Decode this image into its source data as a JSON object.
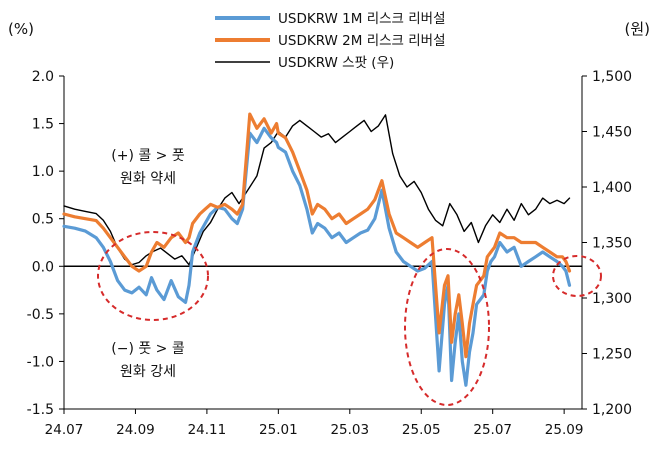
{
  "chart_data": {
    "type": "line",
    "left_unit": "(%)",
    "right_unit": "(원)",
    "x_ticks": [
      "24.07",
      "24.09",
      "24.11",
      "25.01",
      "25.03",
      "25.05",
      "25.07",
      "25.09"
    ],
    "y_left": {
      "min": -1.5,
      "max": 2.0,
      "step": 0.5,
      "ticks": [
        "2.0",
        "1.5",
        "1.0",
        "0.5",
        "0.0",
        "-0.5",
        "-1.0",
        "-1.5"
      ]
    },
    "y_right": {
      "min": 1200,
      "max": 1500,
      "step": 50,
      "ticks": [
        "1,500",
        "1,450",
        "1,400",
        "1,350",
        "1,300",
        "1,250",
        "1,200"
      ]
    },
    "legend": [
      {
        "label": "USDKRW 1M 리스크 리버설",
        "color": "#5b9bd5"
      },
      {
        "label": "USDKRW 2M 리스크 리버설",
        "color": "#ed7d31"
      },
      {
        "label": "USDKRW 스팟 (우)",
        "color": "#000000"
      }
    ],
    "annotations": [
      {
        "line1": "(+) 콜 > 풋",
        "line2": "원화 약세"
      },
      {
        "line1": "(−) 풋 > 콜",
        "line2": "원화 강세"
      }
    ],
    "x_range": [
      0,
      14.5
    ],
    "series": [
      {
        "name": "USDKRW 1M 리스크 리버설",
        "axis": "left",
        "color": "#5b9bd5",
        "x": [
          0,
          0.3,
          0.6,
          0.9,
          1.1,
          1.3,
          1.5,
          1.7,
          1.9,
          2.1,
          2.3,
          2.45,
          2.6,
          2.8,
          3.0,
          3.2,
          3.4,
          3.5,
          3.6,
          3.8,
          3.95,
          4.1,
          4.3,
          4.5,
          4.7,
          4.85,
          5.0,
          5.2,
          5.4,
          5.6,
          5.8,
          5.95,
          6.0,
          6.2,
          6.4,
          6.6,
          6.8,
          6.95,
          7.1,
          7.3,
          7.5,
          7.7,
          7.9,
          8.1,
          8.3,
          8.5,
          8.7,
          8.9,
          9.1,
          9.3,
          9.5,
          9.7,
          9.9,
          10.1,
          10.3,
          10.5,
          10.65,
          10.75,
          10.85,
          10.95,
          11.05,
          11.15,
          11.25,
          11.35,
          11.45,
          11.55,
          11.65,
          11.75,
          11.85,
          11.95,
          12.05,
          12.2,
          12.4,
          12.6,
          12.8,
          13.0,
          13.2,
          13.4,
          13.6,
          13.8,
          13.95,
          14.05,
          14.15
        ],
        "y": [
          0.42,
          0.4,
          0.37,
          0.3,
          0.2,
          0.05,
          -0.15,
          -0.25,
          -0.28,
          -0.22,
          -0.3,
          -0.12,
          -0.25,
          -0.35,
          -0.15,
          -0.32,
          -0.38,
          -0.2,
          0.15,
          0.35,
          0.45,
          0.55,
          0.62,
          0.6,
          0.5,
          0.45,
          0.6,
          1.4,
          1.3,
          1.45,
          1.35,
          1.3,
          1.25,
          1.2,
          1.0,
          0.85,
          0.6,
          0.35,
          0.45,
          0.4,
          0.3,
          0.35,
          0.25,
          0.3,
          0.35,
          0.38,
          0.5,
          0.8,
          0.4,
          0.15,
          0.05,
          0.0,
          -0.05,
          -0.02,
          0.05,
          -1.1,
          -0.4,
          -0.2,
          -1.2,
          -0.8,
          -0.5,
          -1.0,
          -1.25,
          -0.9,
          -0.7,
          -0.4,
          -0.35,
          -0.3,
          -0.05,
          0.05,
          0.1,
          0.25,
          0.15,
          0.2,
          0.0,
          0.05,
          0.1,
          0.15,
          0.1,
          0.05,
          0.0,
          -0.05,
          -0.2
        ]
      },
      {
        "name": "USDKRW 2M 리스크 리버설",
        "axis": "left",
        "color": "#ed7d31",
        "x": [
          0,
          0.3,
          0.6,
          0.9,
          1.1,
          1.3,
          1.5,
          1.7,
          1.9,
          2.1,
          2.3,
          2.45,
          2.6,
          2.8,
          3.0,
          3.2,
          3.4,
          3.5,
          3.6,
          3.8,
          3.95,
          4.1,
          4.3,
          4.5,
          4.7,
          4.85,
          5.0,
          5.2,
          5.4,
          5.6,
          5.8,
          5.95,
          6.0,
          6.2,
          6.4,
          6.6,
          6.8,
          6.95,
          7.1,
          7.3,
          7.5,
          7.7,
          7.9,
          8.1,
          8.3,
          8.5,
          8.7,
          8.9,
          9.1,
          9.3,
          9.5,
          9.7,
          9.9,
          10.1,
          10.3,
          10.5,
          10.65,
          10.75,
          10.85,
          10.95,
          11.05,
          11.15,
          11.25,
          11.35,
          11.45,
          11.55,
          11.65,
          11.75,
          11.85,
          11.95,
          12.05,
          12.2,
          12.4,
          12.6,
          12.8,
          13.0,
          13.2,
          13.4,
          13.6,
          13.8,
          13.95,
          14.05,
          14.15
        ],
        "y": [
          0.55,
          0.52,
          0.5,
          0.48,
          0.4,
          0.3,
          0.2,
          0.1,
          0.0,
          -0.05,
          0.0,
          0.15,
          0.25,
          0.2,
          0.3,
          0.35,
          0.25,
          0.3,
          0.45,
          0.55,
          0.6,
          0.65,
          0.62,
          0.65,
          0.6,
          0.55,
          0.65,
          1.6,
          1.45,
          1.55,
          1.4,
          1.5,
          1.4,
          1.35,
          1.2,
          1.0,
          0.8,
          0.55,
          0.65,
          0.6,
          0.5,
          0.55,
          0.45,
          0.5,
          0.55,
          0.6,
          0.7,
          0.9,
          0.55,
          0.35,
          0.3,
          0.25,
          0.2,
          0.25,
          0.3,
          -0.7,
          -0.2,
          -0.1,
          -0.8,
          -0.5,
          -0.3,
          -0.6,
          -0.95,
          -0.6,
          -0.4,
          -0.2,
          -0.15,
          -0.1,
          0.1,
          0.15,
          0.2,
          0.35,
          0.3,
          0.3,
          0.25,
          0.25,
          0.25,
          0.2,
          0.15,
          0.1,
          0.1,
          0.05,
          -0.05
        ]
      },
      {
        "name": "USDKRW 스팟 (우)",
        "axis": "right",
        "color": "#000000",
        "x": [
          0,
          0.3,
          0.6,
          0.9,
          1.1,
          1.3,
          1.5,
          1.7,
          1.9,
          2.1,
          2.3,
          2.5,
          2.7,
          2.9,
          3.1,
          3.3,
          3.5,
          3.7,
          3.9,
          4.1,
          4.3,
          4.5,
          4.7,
          4.9,
          5.0,
          5.2,
          5.4,
          5.6,
          5.8,
          6.0,
          6.2,
          6.4,
          6.6,
          6.8,
          7.0,
          7.2,
          7.4,
          7.6,
          7.8,
          8.0,
          8.2,
          8.4,
          8.6,
          8.8,
          9.0,
          9.2,
          9.4,
          9.6,
          9.8,
          10.0,
          10.2,
          10.4,
          10.6,
          10.8,
          11.0,
          11.2,
          11.4,
          11.6,
          11.8,
          12.0,
          12.2,
          12.4,
          12.6,
          12.8,
          13.0,
          13.2,
          13.4,
          13.6,
          13.8,
          14.0,
          14.15
        ],
        "y": [
          1383,
          1380,
          1378,
          1376,
          1370,
          1360,
          1345,
          1335,
          1330,
          1332,
          1338,
          1342,
          1345,
          1340,
          1335,
          1338,
          1330,
          1345,
          1360,
          1368,
          1380,
          1390,
          1395,
          1385,
          1390,
          1400,
          1410,
          1435,
          1440,
          1450,
          1445,
          1455,
          1460,
          1455,
          1450,
          1445,
          1448,
          1440,
          1445,
          1450,
          1455,
          1460,
          1450,
          1455,
          1465,
          1430,
          1410,
          1400,
          1405,
          1395,
          1380,
          1370,
          1365,
          1385,
          1375,
          1360,
          1368,
          1350,
          1365,
          1375,
          1368,
          1380,
          1370,
          1385,
          1375,
          1380,
          1390,
          1385,
          1388,
          1385,
          1390
        ]
      }
    ]
  }
}
